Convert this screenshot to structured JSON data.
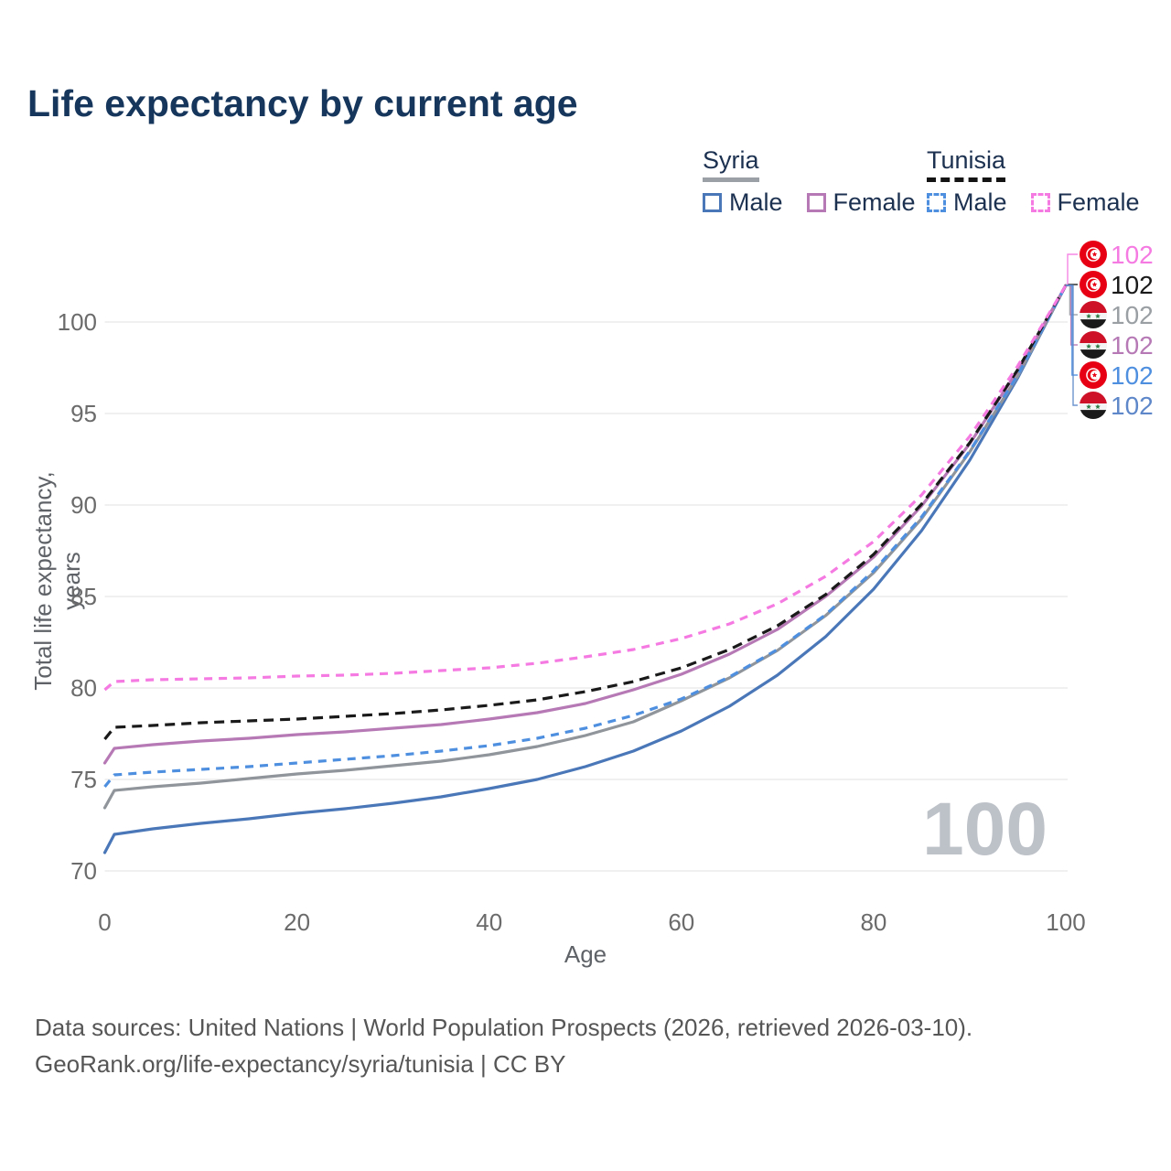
{
  "title": "Life expectancy by current age",
  "legend": {
    "groups": [
      {
        "label": "Syria",
        "items": [
          {
            "label": "Male"
          },
          {
            "label": "Female"
          }
        ]
      },
      {
        "label": "Tunisia",
        "items": [
          {
            "label": "Male"
          },
          {
            "label": "Female"
          }
        ]
      }
    ]
  },
  "watermark": "100",
  "chart_data": {
    "type": "line",
    "title": "Life expectancy by current age",
    "xlabel": "Age",
    "ylabel": "Total life expectancy, years",
    "x_ticks": [
      0,
      20,
      40,
      60,
      80,
      100
    ],
    "y_ticks": [
      70,
      75,
      80,
      85,
      90,
      95,
      100
    ],
    "xlim": [
      0,
      100
    ],
    "ylim": [
      70,
      103
    ],
    "grid": "horizontal",
    "x": [
      0,
      1,
      5,
      10,
      15,
      20,
      25,
      30,
      35,
      40,
      45,
      50,
      55,
      60,
      65,
      70,
      75,
      80,
      85,
      90,
      95,
      100
    ],
    "series": [
      {
        "name": "Syria — Male",
        "country": "Syria",
        "group": "Male",
        "style": "solid",
        "color": "#4a77b8",
        "values": [
          71.0,
          72.0,
          72.3,
          72.6,
          72.85,
          73.15,
          73.4,
          73.7,
          74.05,
          74.5,
          75.0,
          75.7,
          76.55,
          77.65,
          79.0,
          80.7,
          82.8,
          85.4,
          88.6,
          92.45,
          96.95,
          102
        ]
      },
      {
        "name": "Syria — Overall",
        "country": "Syria",
        "group": "Overall",
        "style": "solid",
        "color": "#90959b",
        "values": [
          73.45,
          74.4,
          74.6,
          74.8,
          75.05,
          75.3,
          75.5,
          75.75,
          76.0,
          76.35,
          76.8,
          77.4,
          78.15,
          79.3,
          80.55,
          82.05,
          83.95,
          86.3,
          89.25,
          92.9,
          97.05,
          102
        ]
      },
      {
        "name": "Syria — Female",
        "country": "Syria",
        "group": "Female",
        "style": "solid",
        "color": "#b679b5",
        "values": [
          75.9,
          76.7,
          76.9,
          77.1,
          77.25,
          77.45,
          77.6,
          77.8,
          78.0,
          78.3,
          78.65,
          79.15,
          79.9,
          80.75,
          81.85,
          83.2,
          85.0,
          87.15,
          89.95,
          93.35,
          97.35,
          102
        ]
      },
      {
        "name": "Syria — Male top",
        "country": "Syria",
        "group": "Male",
        "style": "solid",
        "color": "#4a77b8",
        "skip": true,
        "values": null
      },
      {
        "name": "Tunisia — Male",
        "country": "Tunisia",
        "group": "Male",
        "style": "dashed",
        "color": "#4e8fe0",
        "dash": "9 7",
        "values": [
          74.6,
          75.25,
          75.4,
          75.55,
          75.7,
          75.9,
          76.1,
          76.3,
          76.55,
          76.85,
          77.25,
          77.8,
          78.5,
          79.4,
          80.6,
          82.1,
          84.0,
          86.4,
          89.35,
          92.95,
          97.1,
          102
        ]
      },
      {
        "name": "Tunisia — Overall",
        "country": "Tunisia",
        "group": "Overall",
        "style": "dashed",
        "color": "#1a1a1a",
        "dash": "11 7",
        "values": [
          77.2,
          77.85,
          77.95,
          78.1,
          78.2,
          78.3,
          78.45,
          78.6,
          78.8,
          79.05,
          79.35,
          79.8,
          80.35,
          81.1,
          82.1,
          83.4,
          85.1,
          87.3,
          90.05,
          93.4,
          97.4,
          102
        ]
      },
      {
        "name": "Tunisia — Female",
        "country": "Tunisia",
        "group": "Female",
        "style": "dashed",
        "color": "#f57ae1",
        "dash": "9 7",
        "values": [
          79.9,
          80.35,
          80.45,
          80.5,
          80.55,
          80.65,
          80.7,
          80.8,
          80.95,
          81.1,
          81.35,
          81.7,
          82.1,
          82.7,
          83.5,
          84.6,
          86.1,
          88.0,
          90.55,
          93.75,
          97.6,
          102
        ]
      }
    ],
    "end_labels": [
      {
        "series": "Tunisia — Female",
        "flag": "tunisia",
        "value": "102",
        "color": "#f57ae1"
      },
      {
        "series": "Tunisia — Overall",
        "flag": "tunisia",
        "value": "102",
        "color": "#1a1a1a"
      },
      {
        "series": "Syria — Overall",
        "flag": "syria",
        "value": "102",
        "color": "#9a9fa4"
      },
      {
        "series": "Syria — Female",
        "flag": "syria",
        "value": "102",
        "color": "#b679b5"
      },
      {
        "series": "Tunisia — Male",
        "flag": "tunisia",
        "value": "102",
        "color": "#4e8fe0"
      },
      {
        "series": "Syria — Male",
        "flag": "syria",
        "value": "102",
        "color": "#5d87c9"
      }
    ]
  },
  "footer": {
    "line1": "Data sources: United Nations | World Population Prospects (2026, retrieved 2026-03-10).",
    "line2": "GeoRank.org/life-expectancy/syria/tunisia | CC BY"
  }
}
